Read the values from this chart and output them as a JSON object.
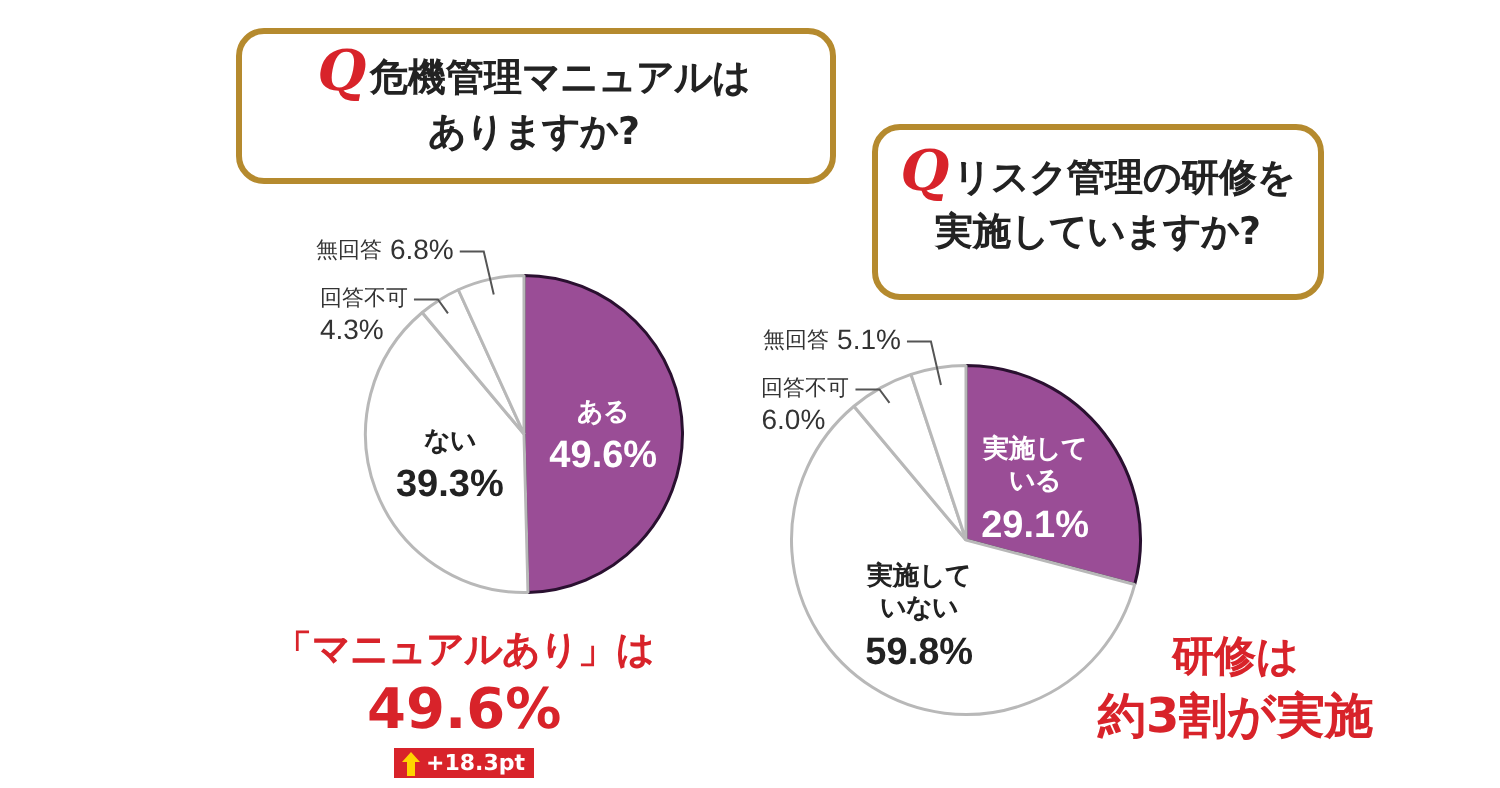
{
  "chart_data": [
    {
      "type": "pie",
      "title": "Q危機管理マニュアルはありますか?",
      "categories": [
        "ある",
        "ない",
        "回答不可",
        "無回答"
      ],
      "values": [
        49.6,
        39.3,
        4.3,
        6.8
      ],
      "value_labels": [
        "49.6%",
        "39.3%",
        "4.3%",
        "6.8%"
      ],
      "colors": [
        "#9a4d96",
        "#ffffff",
        "#ffffff",
        "#ffffff"
      ],
      "annotations": [
        "「マニュアルあり」は",
        "49.6%",
        "+18.3pt"
      ]
    },
    {
      "type": "pie",
      "title": "Qリスク管理の研修を実施していますか?",
      "categories": [
        "実施している",
        "実施していない",
        "回答不可",
        "無回答"
      ],
      "values": [
        29.1,
        59.8,
        6.0,
        5.1
      ],
      "value_labels": [
        "29.1%",
        "59.8%",
        "6.0%",
        "5.1%"
      ],
      "colors": [
        "#9a4d96",
        "#ffffff",
        "#ffffff",
        "#ffffff"
      ],
      "annotations": [
        "研修は",
        "約3割が実施"
      ]
    }
  ]
}
